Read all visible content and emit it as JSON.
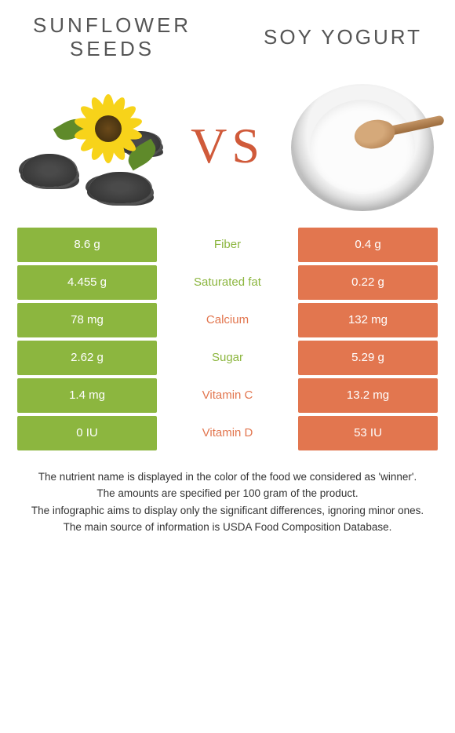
{
  "foods": {
    "left": {
      "title_line1": "SUNFLOWER",
      "title_line2": "SEEDS"
    },
    "right": {
      "title": "SOY YOGURT"
    }
  },
  "vs_label": "VS",
  "colors": {
    "left": "#8cb63f",
    "right": "#e2764f"
  },
  "rows": [
    {
      "nutrient": "Fiber",
      "left": "8.6 g",
      "right": "0.4 g",
      "winner": "left"
    },
    {
      "nutrient": "Saturated fat",
      "left": "4.455 g",
      "right": "0.22 g",
      "winner": "left"
    },
    {
      "nutrient": "Calcium",
      "left": "78 mg",
      "right": "132 mg",
      "winner": "right"
    },
    {
      "nutrient": "Sugar",
      "left": "2.62 g",
      "right": "5.29 g",
      "winner": "left"
    },
    {
      "nutrient": "Vitamin C",
      "left": "1.4 mg",
      "right": "13.2 mg",
      "winner": "right"
    },
    {
      "nutrient": "Vitamin D",
      "left": "0 IU",
      "right": "53 IU",
      "winner": "right"
    }
  ],
  "footnotes": [
    "The nutrient name is displayed in the color of the food we considered as 'winner'.",
    "The amounts are specified per 100 gram of the product.",
    "The infographic aims to display only the significant differences, ignoring minor ones.",
    "The main source of information is USDA Food Composition Database."
  ]
}
